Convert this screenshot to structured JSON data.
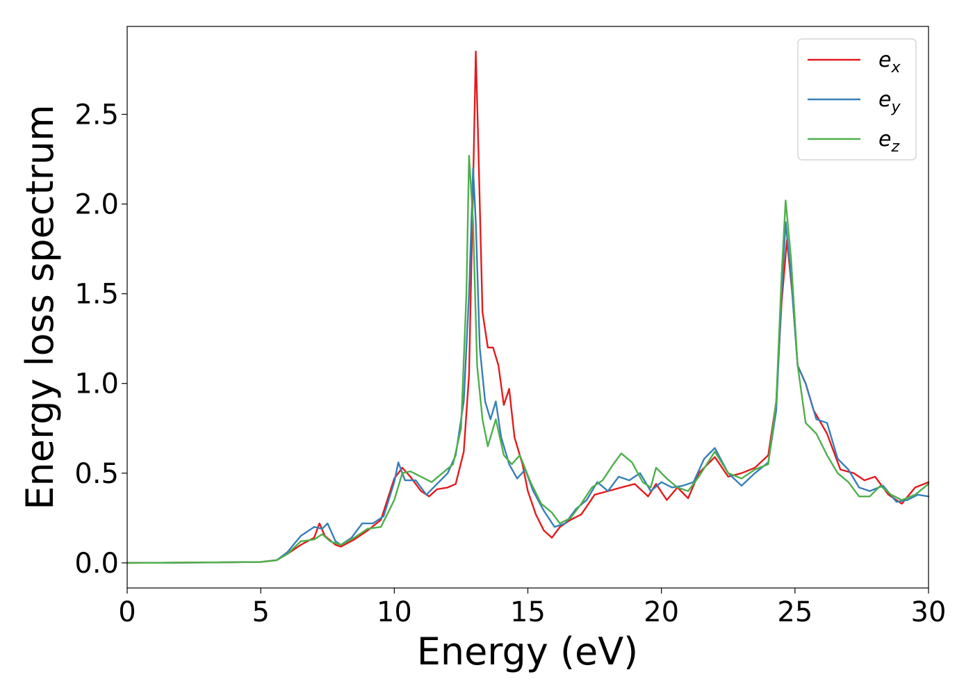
{
  "chart_data": {
    "type": "line",
    "title": "",
    "xlabel": "Energy (eV)",
    "ylabel": "Energy loss spectrum",
    "xlim": [
      0,
      30
    ],
    "ylim": [
      -0.14,
      2.99
    ],
    "xticks": [
      0,
      5,
      10,
      15,
      20,
      25,
      30
    ],
    "xtick_labels": [
      "0",
      "5",
      "10",
      "15",
      "20",
      "25",
      "30"
    ],
    "yticks": [
      0.0,
      0.5,
      1.0,
      1.5,
      2.0,
      2.5
    ],
    "ytick_labels": [
      "0.0",
      "0.5",
      "1.0",
      "1.5",
      "2.0",
      "2.5"
    ],
    "grid": false,
    "legend": "top-right",
    "series": [
      {
        "name": "e",
        "subscript": "x",
        "color": "#e41a1c",
        "points": [
          [
            0,
            0
          ],
          [
            3,
            0.002
          ],
          [
            5,
            0.005
          ],
          [
            5.6,
            0.015
          ],
          [
            6,
            0.05
          ],
          [
            6.5,
            0.1
          ],
          [
            7,
            0.14
          ],
          [
            7.2,
            0.22
          ],
          [
            7.4,
            0.15
          ],
          [
            7.8,
            0.1
          ],
          [
            8,
            0.09
          ],
          [
            8.5,
            0.13
          ],
          [
            9,
            0.18
          ],
          [
            9.5,
            0.24
          ],
          [
            10,
            0.47
          ],
          [
            10.3,
            0.53
          ],
          [
            10.6,
            0.48
          ],
          [
            11,
            0.4
          ],
          [
            11.3,
            0.37
          ],
          [
            11.6,
            0.41
          ],
          [
            12,
            0.42
          ],
          [
            12.3,
            0.44
          ],
          [
            12.6,
            0.62
          ],
          [
            12.8,
            1.05
          ],
          [
            12.95,
            2.1
          ],
          [
            13.05,
            2.85
          ],
          [
            13.15,
            2.3
          ],
          [
            13.3,
            1.4
          ],
          [
            13.5,
            1.2
          ],
          [
            13.7,
            1.2
          ],
          [
            13.9,
            1.1
          ],
          [
            14.1,
            0.88
          ],
          [
            14.3,
            0.97
          ],
          [
            14.5,
            0.7
          ],
          [
            14.8,
            0.55
          ],
          [
            15,
            0.4
          ],
          [
            15.3,
            0.27
          ],
          [
            15.6,
            0.18
          ],
          [
            15.9,
            0.14
          ],
          [
            16.2,
            0.2
          ],
          [
            16.6,
            0.24
          ],
          [
            17,
            0.27
          ],
          [
            17.5,
            0.38
          ],
          [
            18,
            0.4
          ],
          [
            18.5,
            0.42
          ],
          [
            19,
            0.44
          ],
          [
            19.5,
            0.37
          ],
          [
            19.8,
            0.44
          ],
          [
            20.2,
            0.35
          ],
          [
            20.6,
            0.42
          ],
          [
            21,
            0.36
          ],
          [
            21.4,
            0.5
          ],
          [
            22,
            0.59
          ],
          [
            22.5,
            0.48
          ],
          [
            23,
            0.5
          ],
          [
            23.5,
            0.53
          ],
          [
            24,
            0.6
          ],
          [
            24.3,
            0.9
          ],
          [
            24.5,
            1.45
          ],
          [
            24.7,
            1.8
          ],
          [
            24.9,
            1.5
          ],
          [
            25.1,
            1.1
          ],
          [
            25.4,
            1.0
          ],
          [
            25.7,
            0.85
          ],
          [
            26.2,
            0.72
          ],
          [
            26.7,
            0.52
          ],
          [
            27.2,
            0.5
          ],
          [
            27.6,
            0.46
          ],
          [
            28,
            0.48
          ],
          [
            28.5,
            0.38
          ],
          [
            29,
            0.33
          ],
          [
            29.5,
            0.42
          ],
          [
            30,
            0.45
          ]
        ]
      },
      {
        "name": "e",
        "subscript": "y",
        "color": "#377eb8",
        "points": [
          [
            0,
            0
          ],
          [
            3,
            0.002
          ],
          [
            5,
            0.005
          ],
          [
            5.6,
            0.015
          ],
          [
            6,
            0.06
          ],
          [
            6.5,
            0.15
          ],
          [
            7,
            0.2
          ],
          [
            7.3,
            0.19
          ],
          [
            7.5,
            0.22
          ],
          [
            7.8,
            0.12
          ],
          [
            8,
            0.1
          ],
          [
            8.4,
            0.14
          ],
          [
            8.8,
            0.22
          ],
          [
            9.2,
            0.22
          ],
          [
            9.6,
            0.26
          ],
          [
            10,
            0.45
          ],
          [
            10.15,
            0.56
          ],
          [
            10.4,
            0.46
          ],
          [
            10.8,
            0.46
          ],
          [
            11.2,
            0.38
          ],
          [
            11.6,
            0.44
          ],
          [
            12,
            0.5
          ],
          [
            12.3,
            0.6
          ],
          [
            12.6,
            0.9
          ],
          [
            12.8,
            1.5
          ],
          [
            12.95,
            2.2
          ],
          [
            13.05,
            1.9
          ],
          [
            13.2,
            1.2
          ],
          [
            13.4,
            0.9
          ],
          [
            13.6,
            0.8
          ],
          [
            13.8,
            0.9
          ],
          [
            14,
            0.7
          ],
          [
            14.3,
            0.55
          ],
          [
            14.6,
            0.47
          ],
          [
            14.9,
            0.52
          ],
          [
            15.2,
            0.4
          ],
          [
            15.6,
            0.29
          ],
          [
            16,
            0.2
          ],
          [
            16.4,
            0.22
          ],
          [
            16.8,
            0.3
          ],
          [
            17.2,
            0.35
          ],
          [
            17.6,
            0.45
          ],
          [
            18,
            0.4
          ],
          [
            18.4,
            0.48
          ],
          [
            18.8,
            0.46
          ],
          [
            19.2,
            0.5
          ],
          [
            19.6,
            0.4
          ],
          [
            20,
            0.45
          ],
          [
            20.4,
            0.42
          ],
          [
            20.8,
            0.43
          ],
          [
            21.2,
            0.45
          ],
          [
            21.6,
            0.58
          ],
          [
            22,
            0.64
          ],
          [
            22.5,
            0.5
          ],
          [
            23,
            0.43
          ],
          [
            23.5,
            0.5
          ],
          [
            24,
            0.56
          ],
          [
            24.3,
            0.85
          ],
          [
            24.5,
            1.5
          ],
          [
            24.65,
            1.9
          ],
          [
            24.85,
            1.6
          ],
          [
            25.1,
            1.1
          ],
          [
            25.4,
            1.0
          ],
          [
            25.8,
            0.8
          ],
          [
            26.2,
            0.78
          ],
          [
            26.6,
            0.58
          ],
          [
            27,
            0.52
          ],
          [
            27.4,
            0.42
          ],
          [
            27.8,
            0.4
          ],
          [
            28.3,
            0.43
          ],
          [
            28.8,
            0.34
          ],
          [
            29.2,
            0.35
          ],
          [
            29.6,
            0.38
          ],
          [
            30,
            0.37
          ]
        ]
      },
      {
        "name": "e",
        "subscript": "z",
        "color": "#4daf4a",
        "points": [
          [
            0,
            0
          ],
          [
            3,
            0.002
          ],
          [
            5,
            0.005
          ],
          [
            5.6,
            0.015
          ],
          [
            6,
            0.05
          ],
          [
            6.5,
            0.12
          ],
          [
            7,
            0.13
          ],
          [
            7.3,
            0.16
          ],
          [
            7.6,
            0.12
          ],
          [
            8,
            0.1
          ],
          [
            8.5,
            0.14
          ],
          [
            9,
            0.19
          ],
          [
            9.5,
            0.2
          ],
          [
            10,
            0.35
          ],
          [
            10.3,
            0.5
          ],
          [
            10.6,
            0.51
          ],
          [
            11,
            0.48
          ],
          [
            11.4,
            0.45
          ],
          [
            11.8,
            0.5
          ],
          [
            12.2,
            0.55
          ],
          [
            12.5,
            0.75
          ],
          [
            12.7,
            1.5
          ],
          [
            12.8,
            2.27
          ],
          [
            12.95,
            1.9
          ],
          [
            13.1,
            1.1
          ],
          [
            13.3,
            0.8
          ],
          [
            13.5,
            0.65
          ],
          [
            13.8,
            0.8
          ],
          [
            14.1,
            0.6
          ],
          [
            14.4,
            0.55
          ],
          [
            14.7,
            0.6
          ],
          [
            15.1,
            0.45
          ],
          [
            15.5,
            0.33
          ],
          [
            15.9,
            0.28
          ],
          [
            16.2,
            0.22
          ],
          [
            16.6,
            0.25
          ],
          [
            17,
            0.33
          ],
          [
            17.4,
            0.42
          ],
          [
            17.8,
            0.46
          ],
          [
            18.2,
            0.55
          ],
          [
            18.5,
            0.61
          ],
          [
            18.9,
            0.56
          ],
          [
            19.3,
            0.45
          ],
          [
            19.6,
            0.42
          ],
          [
            19.8,
            0.53
          ],
          [
            20.2,
            0.47
          ],
          [
            20.6,
            0.42
          ],
          [
            21,
            0.4
          ],
          [
            21.4,
            0.48
          ],
          [
            22,
            0.62
          ],
          [
            22.5,
            0.5
          ],
          [
            23,
            0.47
          ],
          [
            23.5,
            0.52
          ],
          [
            24,
            0.55
          ],
          [
            24.3,
            0.9
          ],
          [
            24.5,
            1.6
          ],
          [
            24.65,
            2.02
          ],
          [
            24.85,
            1.7
          ],
          [
            25.1,
            1.1
          ],
          [
            25.4,
            0.78
          ],
          [
            25.8,
            0.72
          ],
          [
            26.2,
            0.6
          ],
          [
            26.6,
            0.5
          ],
          [
            27,
            0.45
          ],
          [
            27.4,
            0.37
          ],
          [
            27.8,
            0.37
          ],
          [
            28.2,
            0.43
          ],
          [
            28.6,
            0.38
          ],
          [
            29,
            0.35
          ],
          [
            29.5,
            0.38
          ],
          [
            30,
            0.44
          ]
        ]
      }
    ]
  }
}
